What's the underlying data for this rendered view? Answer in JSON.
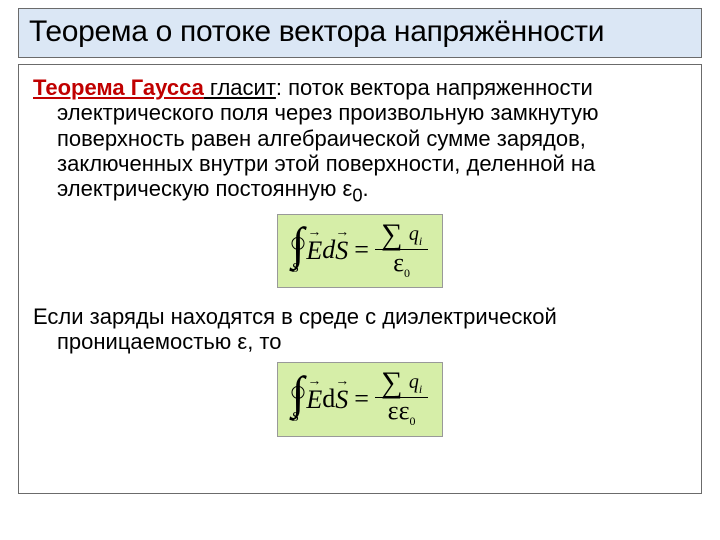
{
  "title": "Теорема о потоке вектора напряжённости",
  "para1_lead": "Теорема Гаусса",
  "para1_verb": " гласит",
  "para1_rest_line1": ": поток вектора напряженности",
  "para1_rest": "электрического поля через произвольную замкнутую поверхность равен алгебраической сумме зарядов, заключенных внутри  этой поверхности, деленной на электрическую постоянную ε",
  "para1_sub": "0",
  "para1_end": ".",
  "para2_line1": "Если заряды находятся в среде с диэлектрической",
  "para2_line2": "проницаемостью ε, то",
  "formula": {
    "int_sub": "S",
    "E": "E",
    "d": "d",
    "S": "S",
    "eq": "=",
    "sigma": "∑",
    "q": "q",
    "qi": "i",
    "eps": "ε",
    "eps0": "0"
  },
  "colors": {
    "title_bg": "#dbe7f5",
    "formula_bg": "#d6eea8",
    "border": "#6b6b6b",
    "theorem": "#c00000"
  }
}
